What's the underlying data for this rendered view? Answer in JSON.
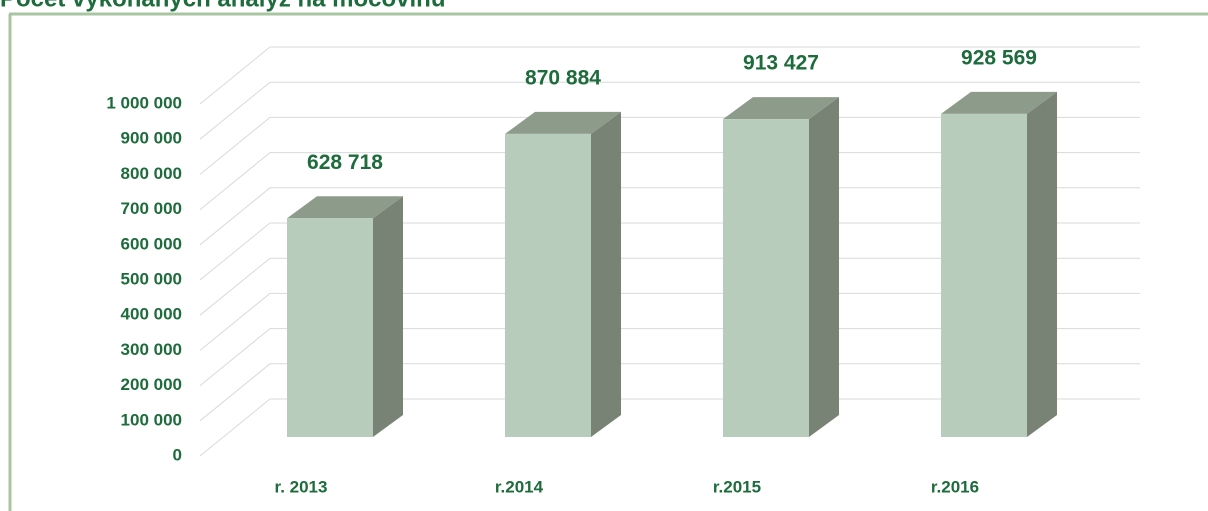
{
  "chart_data": {
    "type": "bar3d",
    "title": "Počet vykonaných analýz na močovinu",
    "categories": [
      "r. 2013",
      "r.2014",
      "r.2015",
      "r.2016"
    ],
    "values": [
      628718,
      870884,
      913427,
      928569
    ],
    "value_labels": [
      "628 718",
      "870 884",
      "913 427",
      "928 569"
    ],
    "color": "#b8ccbb",
    "ylim": [
      0,
      1000000
    ],
    "yticks": [
      0,
      {
        "value": 100000,
        "label": "100 000"
      },
      {
        "value": 200000,
        "label": "200 000"
      },
      {
        "value": 300000,
        "label": "300 000"
      },
      {
        "value": 400000,
        "label": "400 000"
      },
      {
        "value": 500000,
        "label": "500 000"
      },
      {
        "value": 600000,
        "label": "600 000"
      },
      {
        "value": 700000,
        "label": "700 000"
      },
      {
        "value": 800000,
        "label": "800 000"
      },
      {
        "value": 900000,
        "label": "900 000"
      },
      {
        "value": 1000000,
        "label": "1 000 000"
      }
    ],
    "grid": true
  }
}
